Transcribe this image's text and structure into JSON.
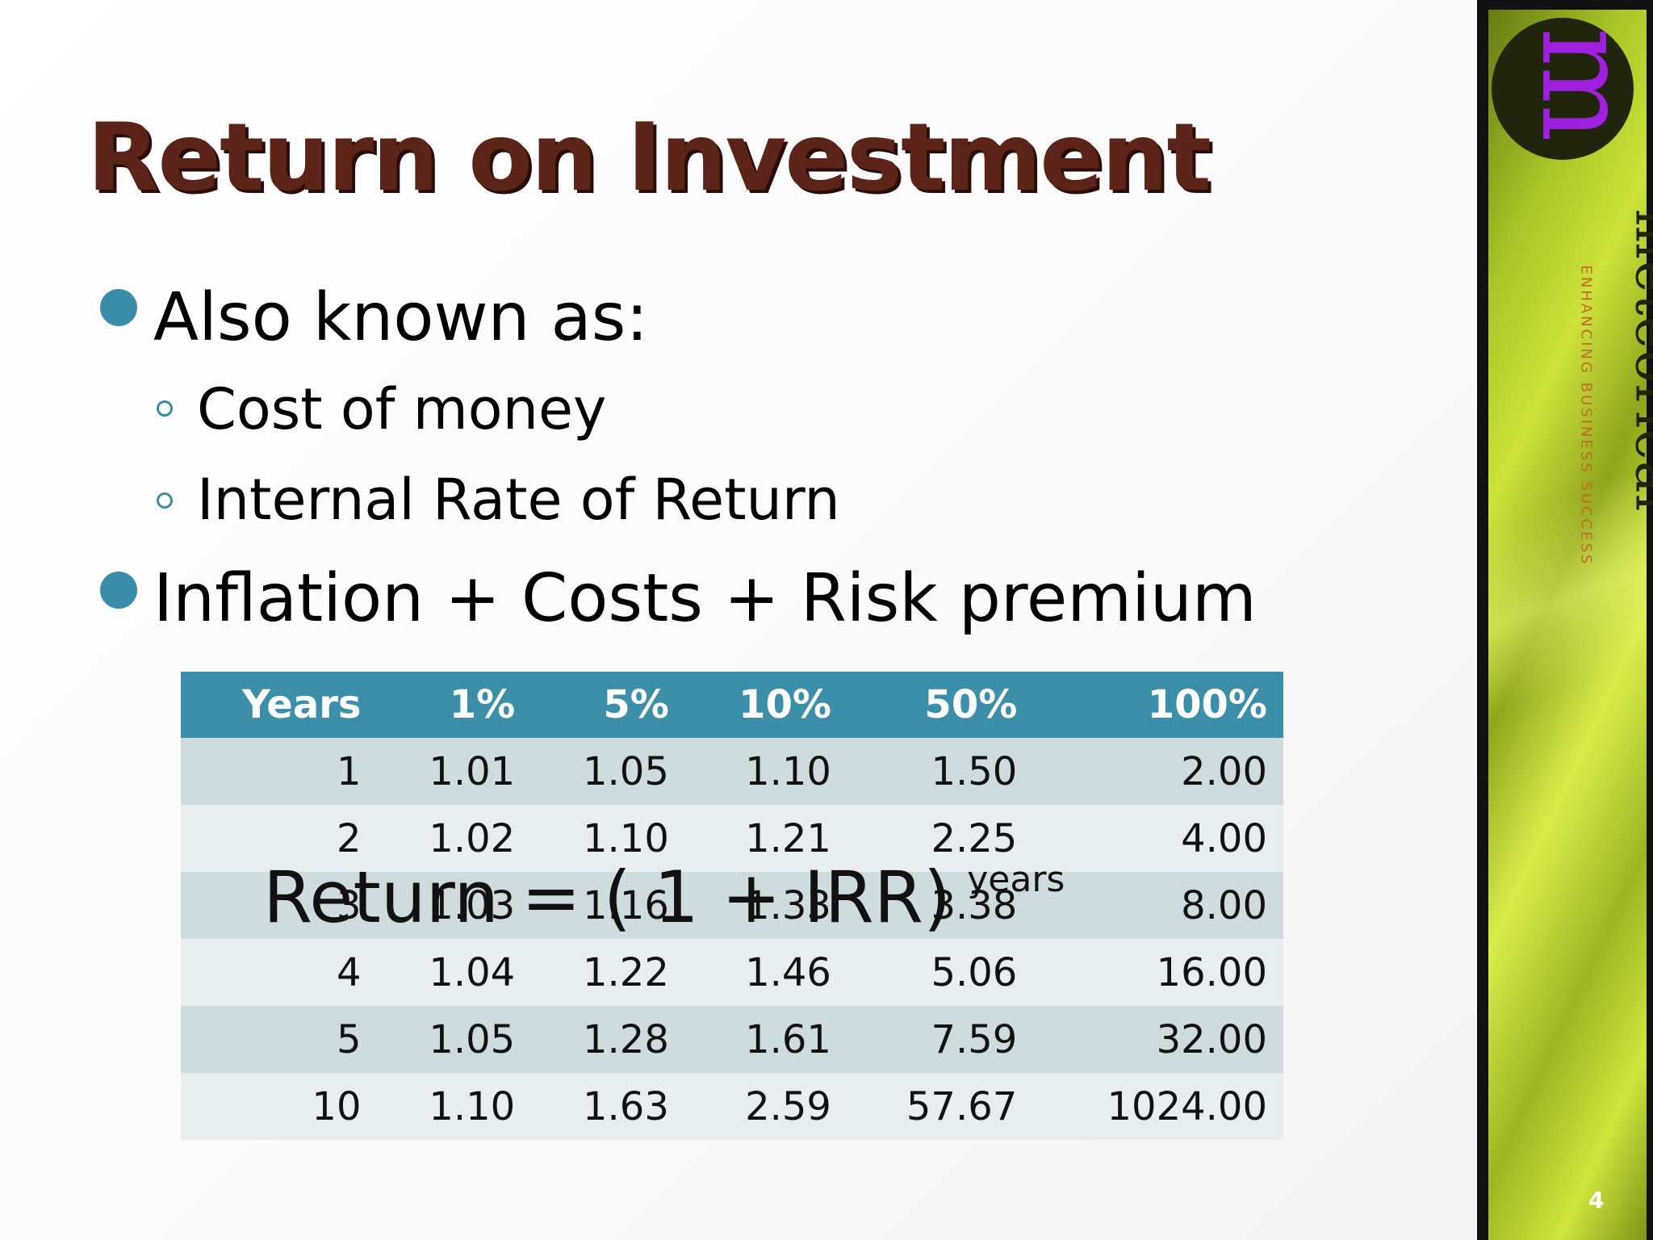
{
  "slide": {
    "title": "Return on Investment",
    "bullets": [
      {
        "text": "Also known as:",
        "sub": [
          "Cost of money",
          "Internal Rate of Return"
        ]
      },
      {
        "text": "Inflation + Costs + Risk premium"
      }
    ],
    "formula": {
      "main": "Return = ( 1 + IRR)",
      "exponent": "years"
    },
    "page_number": "4"
  },
  "table": {
    "headers": [
      "Years",
      "1%",
      "5%",
      "10%",
      "50%",
      "100%"
    ],
    "rows": [
      [
        "1",
        "1.01",
        "1.05",
        "1.10",
        "1.50",
        "2.00"
      ],
      [
        "2",
        "1.02",
        "1.10",
        "1.21",
        "2.25",
        "4.00"
      ],
      [
        "3",
        "1.03",
        "1.16",
        "1.33",
        "3.38",
        "8.00"
      ],
      [
        "4",
        "1.04",
        "1.22",
        "1.46",
        "5.06",
        "16.00"
      ],
      [
        "5",
        "1.05",
        "1.28",
        "1.61",
        "7.59",
        "32.00"
      ],
      [
        "10",
        "1.10",
        "1.63",
        "2.59",
        "57.67",
        "1024.00"
      ]
    ]
  },
  "branding": {
    "name": "meteorical",
    "tagline": "ENHANCING BUSINESS SUCCESS",
    "logo_letter": "m",
    "colors": {
      "accent": "#3a8ca9",
      "title": "#5c2418",
      "logo": "#a020e0"
    }
  }
}
